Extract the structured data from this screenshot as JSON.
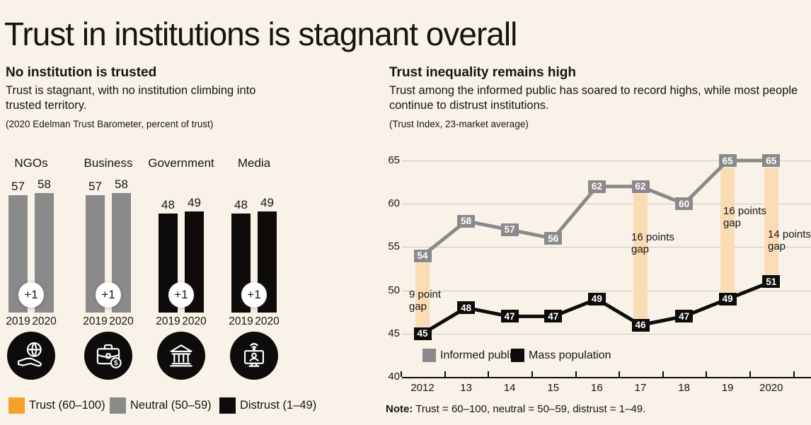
{
  "page": {
    "title": "Trust in institutions is stagnant overall",
    "background": "#f9f2e8"
  },
  "colors": {
    "orange": "#f5a02b",
    "gray": "#8a8a8a",
    "black": "#0d0c0a",
    "gap_band": "#f9dcb4",
    "gridline": "#ccc8c1"
  },
  "chart_data": [
    {
      "type": "bar",
      "title": "No institution is trusted",
      "subtitle": "Trust is stagnant, with no institution climbing into trusted territory.",
      "source": "(2020 Edelman Trust Barometer, percent of trust)",
      "categories": [
        "NGOs",
        "Business",
        "Government",
        "Media"
      ],
      "series": [
        {
          "name": "2019",
          "values": [
            57,
            57,
            48,
            48
          ]
        },
        {
          "name": "2020",
          "values": [
            58,
            58,
            49,
            49
          ]
        }
      ],
      "bar_colors": [
        "#8a8a8a",
        "#8a8a8a",
        "#0d0c0a",
        "#0d0c0a"
      ],
      "change_badges": [
        "+1",
        "+1",
        "+1",
        "+1"
      ],
      "icons": [
        "ngo-hand-globe-icon",
        "business-briefcase-icon",
        "government-building-icon",
        "media-screen-icon"
      ],
      "ylim": [
        0,
        58
      ],
      "legend": [
        {
          "label": "Trust (60–100)",
          "color": "#f5a02b"
        },
        {
          "label": "Neutral (50–59)",
          "color": "#8a8a8a"
        },
        {
          "label": "Distrust (1–49)",
          "color": "#0d0c0a"
        }
      ]
    },
    {
      "type": "line",
      "title": "Trust inequality remains high",
      "subtitle": "Trust among the informed public has soared to record highs, while most people continue to distrust institutions.",
      "source": "(Trust Index, 23-market average)",
      "x": [
        "2012",
        "13",
        "14",
        "15",
        "16",
        "17",
        "18",
        "19",
        "2020"
      ],
      "series": [
        {
          "name": "Informed public",
          "color": "#8a8a8a",
          "values": [
            54,
            58,
            57,
            56,
            62,
            62,
            60,
            65,
            65
          ]
        },
        {
          "name": "Mass population",
          "color": "#0d0c0a",
          "values": [
            45,
            48,
            47,
            47,
            49,
            46,
            47,
            49,
            51
          ]
        }
      ],
      "ylim": [
        40,
        65
      ],
      "yticks": [
        40,
        45,
        50,
        55,
        60,
        65
      ],
      "grid": "horizontal",
      "legend_position": "bottom",
      "gaps": [
        {
          "x": "2012",
          "label": "9 point gap"
        },
        {
          "x": "17",
          "label": "16 points gap"
        },
        {
          "x": "19",
          "label": "16 points gap"
        },
        {
          "x": "2020",
          "label": "14 points gap"
        }
      ],
      "note": {
        "label": "Note:",
        "text": "Trust = 60–100, neutral = 50–59, distrust = 1–49."
      }
    }
  ]
}
